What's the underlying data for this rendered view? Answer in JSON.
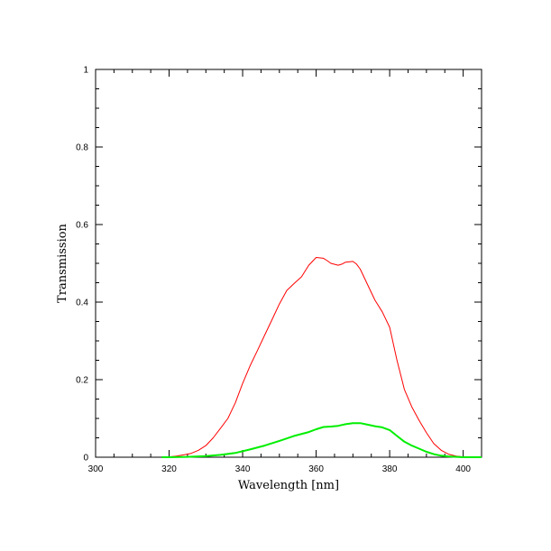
{
  "chart_data": {
    "type": "line",
    "title": "",
    "xlabel": "Wavelength [nm]",
    "ylabel": "Transmission",
    "xlim": [
      300,
      405
    ],
    "ylim": [
      0,
      1
    ],
    "x_ticks": [
      "300",
      "320",
      "340",
      "360",
      "380",
      "400"
    ],
    "y_ticks": [
      "0",
      "0.2",
      "0.4",
      "0.6",
      "0.8",
      "1"
    ],
    "grid": false,
    "legend": "none",
    "series": [
      {
        "color": "#ff0000",
        "x": [
          318,
          320,
          322,
          324,
          326,
          328,
          330,
          332,
          334,
          336,
          338,
          340,
          342,
          344,
          346,
          348,
          350,
          352,
          354,
          356,
          358,
          360,
          362,
          363,
          364,
          366,
          367,
          368,
          370,
          371,
          372,
          374,
          376,
          378,
          380,
          382,
          384,
          386,
          388,
          390,
          392,
          394,
          396,
          398,
          400,
          402,
          404,
          405
        ],
        "y": [
          0.0,
          0.001,
          0.003,
          0.006,
          0.01,
          0.018,
          0.03,
          0.05,
          0.075,
          0.1,
          0.14,
          0.19,
          0.235,
          0.275,
          0.315,
          0.355,
          0.395,
          0.43,
          0.448,
          0.465,
          0.495,
          0.515,
          0.513,
          0.507,
          0.5,
          0.495,
          0.498,
          0.503,
          0.505,
          0.498,
          0.485,
          0.445,
          0.405,
          0.375,
          0.335,
          0.25,
          0.175,
          0.13,
          0.095,
          0.063,
          0.035,
          0.018,
          0.008,
          0.003,
          0.001,
          0.0,
          0.0,
          0.0
        ],
        "width": 1
      },
      {
        "color": "#00ee00",
        "x": [
          318,
          320,
          325,
          330,
          334,
          338,
          342,
          346,
          350,
          354,
          358,
          360,
          362,
          364,
          366,
          368,
          370,
          372,
          374,
          376,
          378,
          380,
          382,
          384,
          386,
          388,
          390,
          392,
          394,
          396,
          398,
          400,
          402,
          404,
          405
        ],
        "y": [
          0.0,
          0.0,
          0.001,
          0.003,
          0.006,
          0.011,
          0.02,
          0.03,
          0.042,
          0.055,
          0.065,
          0.072,
          0.078,
          0.079,
          0.081,
          0.085,
          0.088,
          0.088,
          0.084,
          0.08,
          0.077,
          0.07,
          0.055,
          0.04,
          0.03,
          0.022,
          0.014,
          0.008,
          0.004,
          0.002,
          0.001,
          0.0,
          0.0,
          0.0,
          0.0
        ],
        "width": 2
      }
    ]
  }
}
